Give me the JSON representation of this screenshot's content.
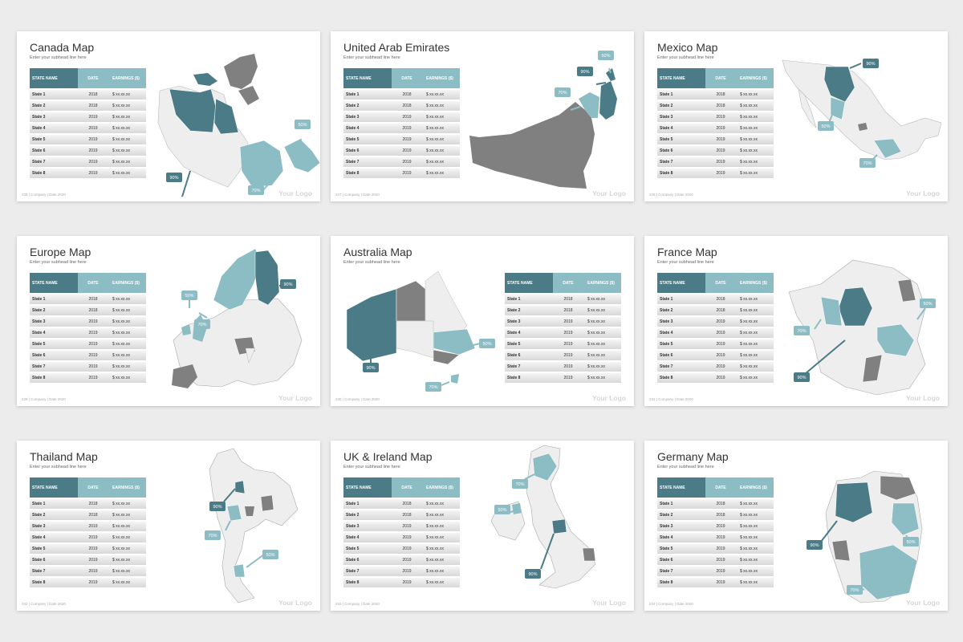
{
  "colors": {
    "dark_teal": "#4a7b86",
    "light_teal": "#8cbcc4",
    "gray": "#808080",
    "light_gray": "#eeeeee",
    "page_bg": "#ececec"
  },
  "table_header": {
    "name": "STATE NAME",
    "date": "DATE",
    "earnings": "EARNINGS ($)"
  },
  "table_rows": [
    {
      "name": "State 1",
      "date": "2018",
      "earnings": "$ xx.xx.xx"
    },
    {
      "name": "State 2",
      "date": "2018",
      "earnings": "$ xx.xx.xx"
    },
    {
      "name": "State 3",
      "date": "2019",
      "earnings": "$ xx.xx.xx"
    },
    {
      "name": "State 4",
      "date": "2019",
      "earnings": "$ xx.xx.xx"
    },
    {
      "name": "State 5",
      "date": "2019",
      "earnings": "$ xx.xx.xx"
    },
    {
      "name": "State 6",
      "date": "2019",
      "earnings": "$ xx.xx.xx"
    },
    {
      "name": "State 7",
      "date": "2019",
      "earnings": "$ xx.xx.xx"
    },
    {
      "name": "State 8",
      "date": "2019",
      "earnings": "$ xx.xx.xx"
    }
  ],
  "subtitle": "Enter your subhead line here",
  "logo": "Your Logo",
  "callouts": {
    "p90": "90%",
    "p70": "70%",
    "p50": "50%"
  },
  "slides": [
    {
      "title": "Canada Map",
      "footer": "226 | Company | Date 2020"
    },
    {
      "title": "United Arab Emirates",
      "footer": "227 | Company | Date 2020"
    },
    {
      "title": "Mexico Map",
      "footer": "228 | Company | Date 2020"
    },
    {
      "title": "Europe Map",
      "footer": "229 | Company | Date 2020"
    },
    {
      "title": "Australia Map",
      "footer": "230 | Company | Date 2020"
    },
    {
      "title": "France Map",
      "footer": "231 | Company | Date 2020"
    },
    {
      "title": "Thailand Map",
      "footer": "232 | Company | Date 2020"
    },
    {
      "title": "UK & Ireland Map",
      "footer": "233 | Company | Date 2020"
    },
    {
      "title": "Germany Map",
      "footer": "234 | Company | Date 2020"
    }
  ]
}
